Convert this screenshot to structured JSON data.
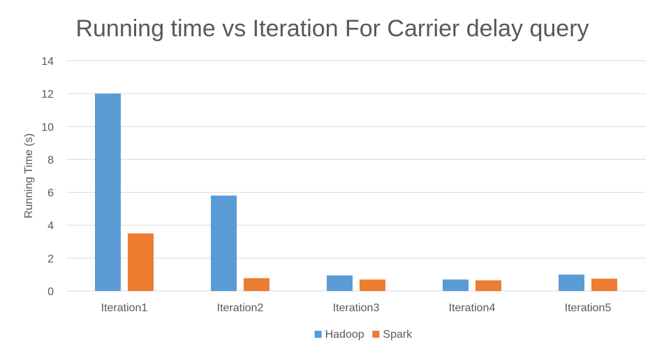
{
  "chart_data": {
    "type": "bar",
    "title": "Running time vs Iteration For Carrier delay query",
    "xlabel": "",
    "ylabel": "Running Time (s)",
    "ylim": [
      0,
      14
    ],
    "yticks": [
      0,
      2,
      4,
      6,
      8,
      10,
      12,
      14
    ],
    "categories": [
      "Iteration1",
      "Iteration2",
      "Iteration3",
      "Iteration4",
      "Iteration5"
    ],
    "series": [
      {
        "name": "Hadoop",
        "color": "#5B9BD5",
        "values": [
          12.0,
          5.8,
          0.95,
          0.7,
          1.0
        ]
      },
      {
        "name": "Spark",
        "color": "#ED7D31",
        "values": [
          3.5,
          0.78,
          0.7,
          0.65,
          0.75
        ]
      }
    ],
    "grid": true,
    "gridColor": "#D9D9D9",
    "legend": "bottom-center"
  }
}
